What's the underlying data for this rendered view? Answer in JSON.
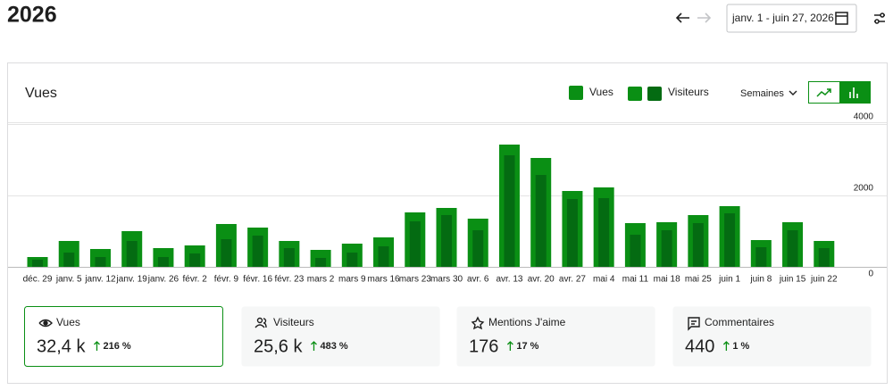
{
  "header": {
    "title": "2026",
    "date_range": "janv. 1 - juin 27, 2026"
  },
  "chart_data": {
    "type": "bar",
    "title": "Vues",
    "period": "Semaines",
    "categories": [
      "déc. 29",
      "janv. 5",
      "janv. 12",
      "janv. 19",
      "janv. 26",
      "févr. 2",
      "févr. 9",
      "févr. 16",
      "févr. 23",
      "mars 2",
      "mars 9",
      "mars 16",
      "mars 23",
      "mars 30",
      "avr. 6",
      "avr. 13",
      "avr. 20",
      "avr. 27",
      "mai 4",
      "mai 11",
      "mai 18",
      "mai 25",
      "juin 1",
      "juin 8",
      "juin 15",
      "juin 22"
    ],
    "series": [
      {
        "name": "Vues",
        "color": "#0a8f14",
        "values": [
          275,
          725,
          500,
          1000,
          525,
          600,
          1200,
          1100,
          725,
          475,
          650,
          825,
          1525,
          1650,
          1350,
          3425,
          3050,
          2125,
          2225,
          1225,
          1250,
          1450,
          1700,
          750,
          1250,
          725
        ]
      },
      {
        "name": "Visiteurs",
        "color": "#046b12",
        "values": [
          200,
          400,
          275,
          725,
          275,
          375,
          775,
          875,
          525,
          250,
          400,
          575,
          1275,
          1450,
          1025,
          3125,
          2575,
          1900,
          1925,
          900,
          1025,
          1225,
          1500,
          550,
          1025,
          525
        ]
      }
    ],
    "ylim": [
      0,
      4000
    ],
    "yticks": [
      0,
      2000,
      4000
    ],
    "grid": true
  },
  "stats": [
    {
      "label": "Vues",
      "value": "32,4 k",
      "change": "216 %"
    },
    {
      "label": "Visiteurs",
      "value": "25,6 k",
      "change": "483 %"
    },
    {
      "label": "Mentions J'aime",
      "value": "176",
      "change": "17 %"
    },
    {
      "label": "Commentaires",
      "value": "440",
      "change": "1 %"
    }
  ]
}
